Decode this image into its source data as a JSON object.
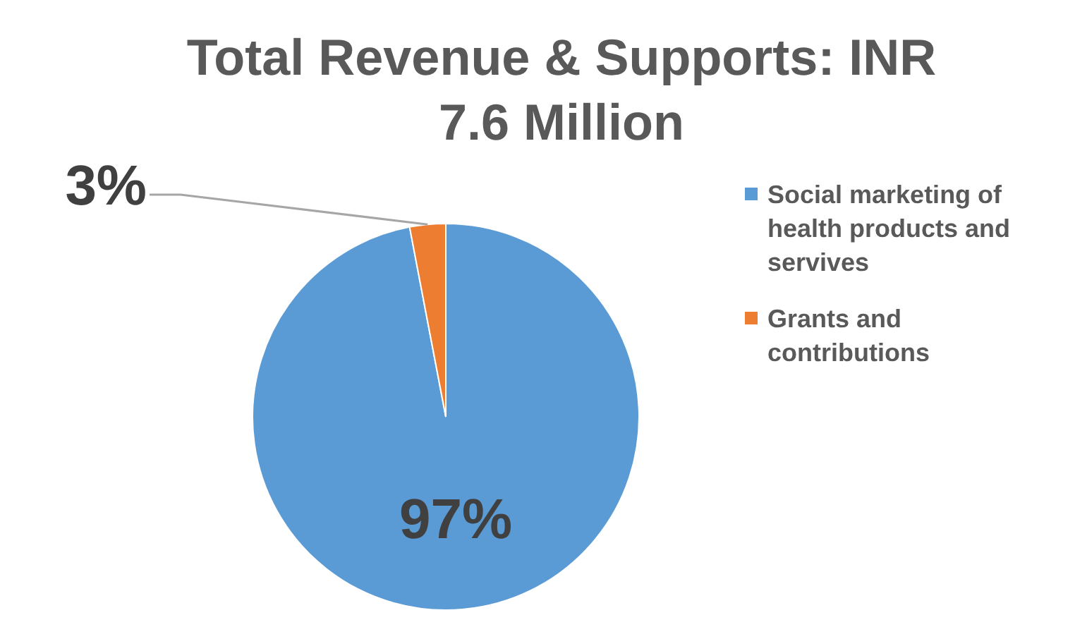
{
  "chart_data": {
    "type": "pie",
    "title": "Total Revenue & Supports: INR 7.6 Million",
    "categories": [
      "Social marketing of health products and servives",
      "Grants and contributions"
    ],
    "values": [
      97,
      3
    ],
    "colors": [
      "#5b9bd5",
      "#ed7d31"
    ],
    "value_labels": [
      "97%",
      "3%"
    ],
    "legend": "right"
  }
}
